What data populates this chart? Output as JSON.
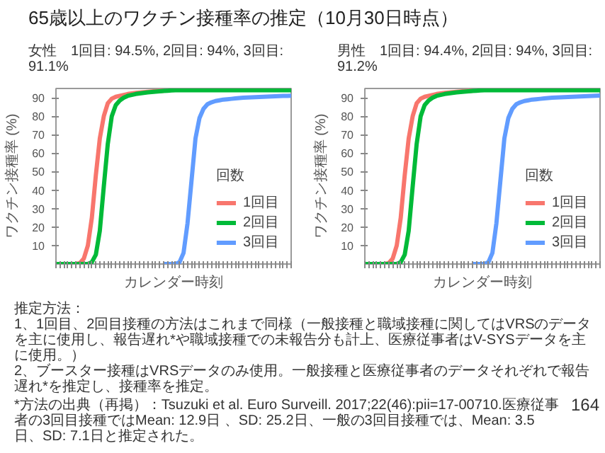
{
  "chart_data": [
    {
      "type": "line",
      "title": "女性　1回目: 94.5%, 2回目: 94%, 3回目: 91.1%",
      "xlabel": "カレンダー時刻",
      "ylabel": "ワクチン接種率 (%)",
      "legend_title": "回数",
      "legend": "bottom right",
      "tick_labels": "y",
      "ylim": [
        0,
        95
      ],
      "yticks": [
        10,
        20,
        30,
        40,
        50,
        60,
        70,
        80,
        90
      ],
      "categories": [
        null,
        null,
        null,
        null,
        null,
        null,
        null,
        null,
        null,
        null,
        null,
        null,
        null,
        null,
        null,
        null,
        null,
        null,
        null,
        null,
        null,
        null,
        null,
        null,
        null,
        null,
        null,
        null,
        null,
        null,
        null,
        null,
        null,
        null,
        null,
        null,
        null,
        null,
        null,
        null,
        null,
        null,
        null,
        null,
        null,
        null,
        null,
        null,
        null,
        null,
        null,
        null,
        null,
        null,
        null,
        null,
        null,
        null,
        null,
        null
      ],
      "series": [
        {
          "name": "1回目",
          "color": "#f8766d",
          "values": [
            null,
            null,
            null,
            null,
            0,
            0,
            0.5,
            3,
            10,
            25,
            48,
            68,
            80,
            87,
            89.5,
            90.5,
            91,
            91.5,
            92,
            92.3,
            92.6,
            92.8,
            93,
            93.2,
            93.4,
            93.6,
            93.7,
            93.8,
            null,
            null,
            null,
            null,
            null,
            null,
            null,
            null,
            null,
            null,
            null,
            null,
            null,
            null,
            null,
            null,
            null,
            null,
            null,
            null,
            null,
            null,
            null,
            null,
            null,
            null,
            null,
            null,
            null,
            null,
            null,
            null
          ]
        },
        {
          "name": "2回目",
          "color": "#00ba38",
          "values": [
            0,
            0,
            0,
            0,
            0,
            0,
            0,
            0,
            0,
            1,
            5,
            18,
            42,
            65,
            80,
            86,
            88.5,
            90,
            91,
            91.5,
            92,
            92.3,
            92.6,
            92.9,
            93.1,
            93.3,
            93.5,
            93.7,
            93.8,
            93.9,
            94,
            94,
            94,
            94,
            94,
            94,
            94,
            94,
            94,
            94,
            94,
            94,
            94,
            94,
            94,
            94,
            94,
            94,
            94,
            94,
            94,
            94,
            94,
            94,
            94,
            94,
            94,
            94,
            94,
            94
          ]
        },
        {
          "name": "3回目",
          "color": "#619cff",
          "values": [
            null,
            null,
            null,
            null,
            null,
            null,
            null,
            null,
            null,
            null,
            null,
            null,
            null,
            null,
            null,
            null,
            null,
            null,
            null,
            null,
            null,
            null,
            null,
            null,
            null,
            null,
            null,
            0,
            0,
            0,
            0,
            1,
            6,
            22,
            45,
            68,
            79,
            84,
            86.5,
            87.5,
            88.2,
            88.6,
            89,
            89.2,
            89.4,
            89.6,
            89.8,
            90,
            90.1,
            90.2,
            90.3,
            90.4,
            90.5,
            90.6,
            90.7,
            90.8,
            90.9,
            91,
            91,
            91.1
          ]
        }
      ],
      "annotations": [
        "65歳以上のワクチン接種率の推定（10月30日時点）",
        "推定方法：",
        "1、1回目、2回目接種の方法はこれまで同様（一般接種と職域接種に関してはVRSのデータを主に使用し、報告遅れ*や職域接種での未報告分も計上、医療従事者はV-SYSデータを主に使用。）",
        "2、ブースター接種はVRSデータのみ使用。一般接種と医療従事者のデータそれぞれで報告遅れ*を推定し、接種率を推定。",
        "*方法の出典（再掲）：Tsuzuki et al. Euro Surveill. 2017;22(46):pii=17-00710.医療従事者の3回目接種ではMean: 12.9日 、SD: 25.2日、一般の3回目接種では、Mean: 3.5日、SD: 7.1日と推定された。",
        "164"
      ]
    },
    {
      "type": "line",
      "title": "男性　1回目: 94.4%, 2回目: 94%, 3回目: 91.2%",
      "xlabel": "カレンダー時刻",
      "ylabel": "ワクチン接種率 (%)",
      "legend_title": "回数",
      "legend": "bottom right",
      "tick_labels": "y",
      "ylim": [
        0,
        95
      ],
      "yticks": [
        10,
        20,
        30,
        40,
        50,
        60,
        70,
        80,
        90
      ],
      "categories": [
        null,
        null,
        null,
        null,
        null,
        null,
        null,
        null,
        null,
        null,
        null,
        null,
        null,
        null,
        null,
        null,
        null,
        null,
        null,
        null,
        null,
        null,
        null,
        null,
        null,
        null,
        null,
        null,
        null,
        null,
        null,
        null,
        null,
        null,
        null,
        null,
        null,
        null,
        null,
        null,
        null,
        null,
        null,
        null,
        null,
        null,
        null,
        null,
        null,
        null,
        null,
        null,
        null,
        null,
        null,
        null,
        null,
        null,
        null,
        null
      ],
      "series": [
        {
          "name": "1回目",
          "color": "#f8766d",
          "values": [
            null,
            null,
            null,
            null,
            0,
            0,
            0.5,
            3,
            10,
            25,
            48,
            68,
            80,
            87,
            89.5,
            90.5,
            91,
            91.5,
            92,
            92.3,
            92.6,
            92.8,
            93,
            93.2,
            93.4,
            93.6,
            93.7,
            93.8,
            null,
            null,
            null,
            null,
            null,
            null,
            null,
            null,
            null,
            null,
            null,
            null,
            null,
            null,
            null,
            null,
            null,
            null,
            null,
            null,
            null,
            null,
            null,
            null,
            null,
            null,
            null,
            null,
            null,
            null,
            null,
            null
          ]
        },
        {
          "name": "2回目",
          "color": "#00ba38",
          "values": [
            0,
            0,
            0,
            0,
            0,
            0,
            0,
            0,
            0,
            1,
            5,
            18,
            42,
            65,
            80,
            86,
            88.5,
            90,
            91,
            91.5,
            92,
            92.3,
            92.6,
            92.9,
            93.1,
            93.3,
            93.5,
            93.7,
            93.8,
            93.9,
            94,
            94,
            94,
            94,
            94,
            94,
            94,
            94,
            94,
            94,
            94,
            94,
            94,
            94,
            94,
            94,
            94,
            94,
            94,
            94,
            94,
            94,
            94,
            94,
            94,
            94,
            94,
            94,
            94,
            94
          ]
        },
        {
          "name": "3回目",
          "color": "#619cff",
          "values": [
            null,
            null,
            null,
            null,
            null,
            null,
            null,
            null,
            null,
            null,
            null,
            null,
            null,
            null,
            null,
            null,
            null,
            null,
            null,
            null,
            null,
            null,
            null,
            null,
            null,
            null,
            null,
            0,
            0,
            0,
            0,
            1,
            6,
            22,
            45,
            68,
            79,
            84,
            86.5,
            87.5,
            88.2,
            88.6,
            89,
            89.2,
            89.4,
            89.6,
            89.8,
            90,
            90.1,
            90.2,
            90.3,
            90.4,
            90.5,
            90.6,
            90.7,
            90.8,
            90.9,
            91,
            91.1,
            91.2
          ]
        }
      ]
    }
  ]
}
